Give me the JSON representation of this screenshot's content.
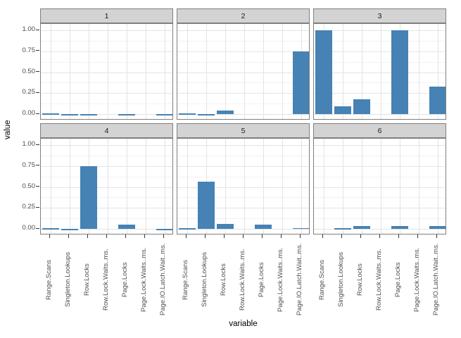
{
  "chart_data": {
    "type": "bar",
    "title": "",
    "xlabel": "variable",
    "ylabel": "value",
    "legend_position": "none",
    "grid": true,
    "facet_layout": {
      "rows": 2,
      "cols": 3
    },
    "ylim": [
      -0.075,
      1.075
    ],
    "y_ticks": [
      {
        "label": "1.00",
        "v": 1.0
      },
      {
        "label": "0.75",
        "v": 0.75
      },
      {
        "label": "0.50",
        "v": 0.5
      },
      {
        "label": "0.25",
        "v": 0.25
      },
      {
        "label": "0.00",
        "v": 0.0
      }
    ],
    "categories": [
      "Range.Scans",
      "Singleton.Lookups",
      "Row.Locks",
      "Row.Lock.Waits..ms.",
      "Page.Locks",
      "Page.Lock.Waits..ms.",
      "Page.IO.Latch.Wait..ms."
    ],
    "facets": [
      {
        "label": "1",
        "values": [
          0.0,
          -0.02,
          -0.02,
          null,
          -0.01,
          null,
          -0.01
        ]
      },
      {
        "label": "2",
        "values": [
          0.0,
          -0.02,
          0.04,
          null,
          null,
          null,
          0.75
        ]
      },
      {
        "label": "3",
        "values": [
          1.0,
          0.09,
          0.18,
          null,
          1.0,
          null,
          0.33
        ]
      },
      {
        "label": "4",
        "values": [
          0.0,
          -0.02,
          0.75,
          null,
          0.05,
          null,
          -0.01
        ]
      },
      {
        "label": "5",
        "values": [
          0.0,
          0.56,
          0.06,
          null,
          0.05,
          null,
          0.01
        ]
      },
      {
        "label": "6",
        "values": [
          null,
          0.0,
          0.03,
          null,
          0.03,
          null,
          0.03
        ]
      }
    ]
  },
  "colors": {
    "bar_fill": "#4682B4",
    "strip_background": "#D3D3D3",
    "panel_border": "#7F7F7F",
    "grid_major": "#E4E4E4",
    "grid_minor": "#F2F2F2",
    "tick_text": "#4D4D4D",
    "axis_title_text": "#000000",
    "background": "#FFFFFF"
  }
}
